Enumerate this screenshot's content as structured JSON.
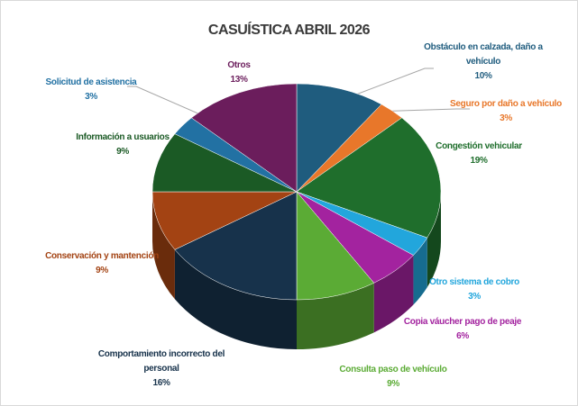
{
  "chart_data": {
    "type": "pie",
    "title": "CASUÍSTICA ABRIL 2026",
    "categories": [
      "Obstáculo en calzada, daño a vehículo",
      "Seguro por daño a vehículo",
      "Congestión vehicular",
      "Otro sistema de cobro",
      "Copia váucher pago de peaje",
      "Consulta paso de vehículo",
      "Comportamiento incorrecto del personal",
      "Conservación y mantención",
      "Información a usuarios",
      "Solicitud de asistencia",
      "Otros"
    ],
    "values": [
      10,
      3,
      19,
      3,
      6,
      9,
      16,
      9,
      9,
      3,
      13
    ],
    "value_labels": [
      "10%",
      "3%",
      "19%",
      "3%",
      "6%",
      "9%",
      "16%",
      "9%",
      "9%",
      "3%",
      "13%"
    ],
    "colors": [
      "#1f5c7e",
      "#e8772a",
      "#1f6e2c",
      "#22a6dc",
      "#a3239f",
      "#5bab35",
      "#17324b",
      "#a34313",
      "#1b5a25",
      "#2271a3",
      "#6b1d5c"
    ]
  }
}
